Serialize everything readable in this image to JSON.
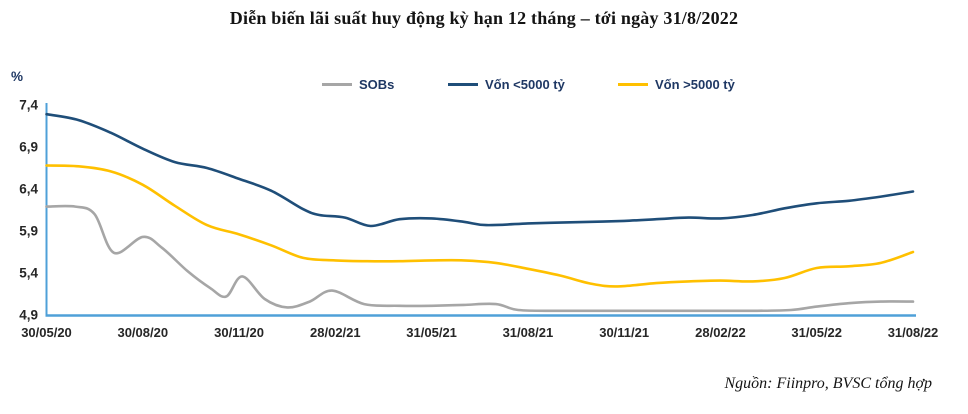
{
  "title": "Diễn biến lãi suất huy động kỳ hạn 12 tháng – tới ngày 31/8/2022",
  "source": "Nguồn: Fiinpro, BVSC tổng hợp",
  "colors": {
    "axis": "#4FA0D8",
    "tick_text": "#262626",
    "legend_text": "#1F3864",
    "title_text": "#141414",
    "sobs_line": "#A6A6A6",
    "small_banks_line": "#1F4E79",
    "large_banks_line": "#FFC000"
  },
  "chart_data": {
    "type": "line",
    "title": "Diễn biến lãi suất huy động kỳ hạn 12 tháng – tới ngày 31/8/2022",
    "unit_label": "%",
    "ylim": [
      4.9,
      7.4
    ],
    "x_total_months": 27,
    "grid": "off",
    "legend_position": "top",
    "yticks": [
      {
        "label": "4,9",
        "value": 4.9
      },
      {
        "label": "5,4",
        "value": 5.4
      },
      {
        "label": "5,9",
        "value": 5.9
      },
      {
        "label": "6,4",
        "value": 6.4
      },
      {
        "label": "6,9",
        "value": 6.9
      },
      {
        "label": "7,4",
        "value": 7.4
      }
    ],
    "xticks": [
      {
        "label": "30/05/20",
        "m": 0
      },
      {
        "label": "30/08/20",
        "m": 3
      },
      {
        "label": "30/11/20",
        "m": 6
      },
      {
        "label": "28/02/21",
        "m": 9
      },
      {
        "label": "31/05/21",
        "m": 12
      },
      {
        "label": "31/08/21",
        "m": 15
      },
      {
        "label": "30/11/21",
        "m": 18
      },
      {
        "label": "28/02/22",
        "m": 21
      },
      {
        "label": "31/05/22",
        "m": 24
      },
      {
        "label": "31/08/22",
        "m": 27
      }
    ],
    "series": [
      {
        "name": "SOBs",
        "color": "#A6A6A6",
        "points": [
          [
            0,
            6.19
          ],
          [
            0.9,
            6.19
          ],
          [
            1.5,
            6.1
          ],
          [
            2.1,
            5.64
          ],
          [
            3.0,
            5.83
          ],
          [
            3.6,
            5.7
          ],
          [
            4.4,
            5.42
          ],
          [
            5.1,
            5.22
          ],
          [
            5.6,
            5.12
          ],
          [
            6.1,
            5.36
          ],
          [
            6.8,
            5.09
          ],
          [
            7.5,
            4.99
          ],
          [
            8.2,
            5.06
          ],
          [
            8.9,
            5.19
          ],
          [
            9.9,
            5.03
          ],
          [
            11,
            5.01
          ],
          [
            12,
            5.01
          ],
          [
            13,
            5.02
          ],
          [
            14,
            5.03
          ],
          [
            14.7,
            4.96
          ],
          [
            16,
            4.95
          ],
          [
            18,
            4.95
          ],
          [
            20,
            4.95
          ],
          [
            22,
            4.95
          ],
          [
            23.2,
            4.96
          ],
          [
            24,
            5.0
          ],
          [
            25,
            5.04
          ],
          [
            26,
            5.06
          ],
          [
            27,
            5.06
          ]
        ]
      },
      {
        "name": "Vốn <5000 tỷ",
        "color": "#1F4E79",
        "points": [
          [
            0,
            7.29
          ],
          [
            1,
            7.22
          ],
          [
            2,
            7.07
          ],
          [
            3,
            6.88
          ],
          [
            4,
            6.72
          ],
          [
            5,
            6.65
          ],
          [
            6,
            6.52
          ],
          [
            7,
            6.38
          ],
          [
            8,
            6.16
          ],
          [
            8.5,
            6.09
          ],
          [
            9.3,
            6.06
          ],
          [
            10.1,
            5.96
          ],
          [
            11,
            6.04
          ],
          [
            12,
            6.05
          ],
          [
            13,
            6.01
          ],
          [
            13.7,
            5.97
          ],
          [
            15,
            5.99
          ],
          [
            16,
            6.0
          ],
          [
            17,
            6.01
          ],
          [
            18,
            6.02
          ],
          [
            19,
            6.04
          ],
          [
            20,
            6.06
          ],
          [
            21,
            6.05
          ],
          [
            22,
            6.09
          ],
          [
            23,
            6.17
          ],
          [
            24,
            6.23
          ],
          [
            25,
            6.26
          ],
          [
            26,
            6.31
          ],
          [
            27,
            6.37
          ]
        ]
      },
      {
        "name": "Vốn >5000 tỷ",
        "color": "#FFC000",
        "points": [
          [
            0,
            6.68
          ],
          [
            1,
            6.67
          ],
          [
            2,
            6.61
          ],
          [
            3,
            6.45
          ],
          [
            4,
            6.2
          ],
          [
            5,
            5.97
          ],
          [
            6,
            5.86
          ],
          [
            7,
            5.73
          ],
          [
            8,
            5.58
          ],
          [
            9,
            5.55
          ],
          [
            10,
            5.54
          ],
          [
            11,
            5.54
          ],
          [
            12,
            5.55
          ],
          [
            13,
            5.55
          ],
          [
            14,
            5.52
          ],
          [
            15,
            5.45
          ],
          [
            16,
            5.37
          ],
          [
            17,
            5.27
          ],
          [
            17.8,
            5.24
          ],
          [
            19,
            5.28
          ],
          [
            20,
            5.3
          ],
          [
            21,
            5.31
          ],
          [
            22,
            5.3
          ],
          [
            23,
            5.34
          ],
          [
            24,
            5.46
          ],
          [
            25,
            5.48
          ],
          [
            26,
            5.52
          ],
          [
            27,
            5.65
          ]
        ]
      }
    ]
  }
}
